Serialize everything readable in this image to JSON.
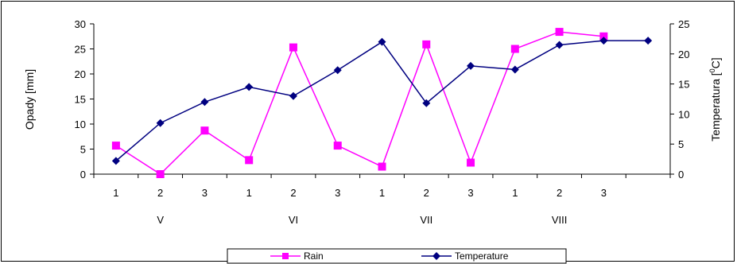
{
  "chart_data": {
    "type": "line",
    "categories": [
      "1",
      "2",
      "3",
      "1",
      "2",
      "3",
      "1",
      "2",
      "3",
      "1",
      "2",
      "3",
      ""
    ],
    "groups": [
      "V",
      "VI",
      "VII",
      "VIII"
    ],
    "ylabel": "Opady [mm]",
    "y2label": "Temperatura [°C]",
    "ylim": [
      0,
      30
    ],
    "y2lim": [
      0,
      25
    ],
    "yticks": [
      0,
      5,
      10,
      15,
      20,
      25,
      30
    ],
    "y2ticks": [
      0,
      5,
      10,
      15,
      20,
      25
    ],
    "grid": false,
    "legend_position": "bottom",
    "series": [
      {
        "name": "Rain",
        "axis": "left",
        "marker": "square",
        "color": "#ff00ff",
        "values": [
          5.7,
          0.0,
          8.7,
          2.8,
          25.3,
          5.7,
          1.5,
          25.9,
          2.3,
          25.0,
          28.4,
          27.5,
          null
        ]
      },
      {
        "name": "Temperature",
        "axis": "right",
        "marker": "diamond",
        "color": "#000080",
        "values": [
          2.2,
          8.5,
          12.0,
          14.5,
          13.0,
          17.3,
          22.0,
          11.8,
          18.0,
          17.4,
          21.5,
          22.2,
          22.2
        ]
      }
    ]
  }
}
